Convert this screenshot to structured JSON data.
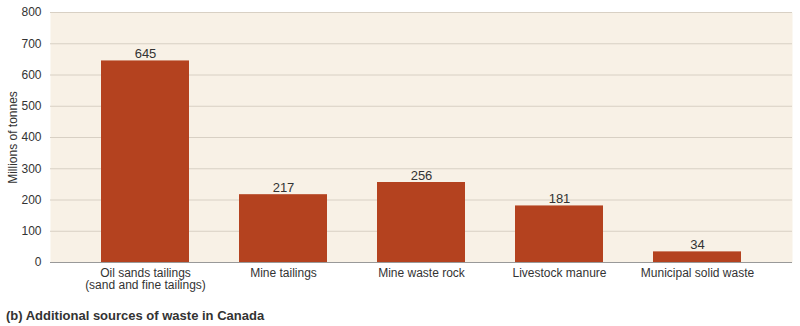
{
  "chart_data": {
    "type": "bar",
    "title": "(b) Additional sources of waste in Canada",
    "y_label": "Millions of tonnes",
    "categories": [
      "Oil sands tailings\n(sand and fine tailings)",
      "Mine tailings",
      "Mine waste rock",
      "Livestock manure",
      "Municipal solid waste"
    ],
    "values": [
      645,
      217,
      256,
      181,
      34
    ],
    "color": "#b4421f",
    "ylim": [
      0,
      800
    ],
    "yticks": [
      0,
      100,
      200,
      300,
      400,
      500,
      600,
      700,
      800
    ],
    "grid": true,
    "data_labels": true
  }
}
